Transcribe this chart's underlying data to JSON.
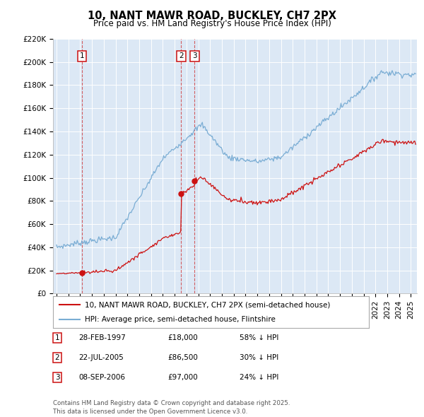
{
  "title": "10, NANT MAWR ROAD, BUCKLEY, CH7 2PX",
  "subtitle": "Price paid vs. HM Land Registry's House Price Index (HPI)",
  "legend_line1": "10, NANT MAWR ROAD, BUCKLEY, CH7 2PX (semi-detached house)",
  "legend_line2": "HPI: Average price, semi-detached house, Flintshire",
  "footer": "Contains HM Land Registry data © Crown copyright and database right 2025.\nThis data is licensed under the Open Government Licence v3.0.",
  "transactions": [
    {
      "label": "1",
      "date_year": 1997.16,
      "price": 18000,
      "pct": "58% ↓ HPI",
      "date_str": "28-FEB-1997",
      "price_str": "£18,000"
    },
    {
      "label": "2",
      "date_year": 2005.55,
      "price": 86500,
      "pct": "30% ↓ HPI",
      "date_str": "22-JUL-2005",
      "price_str": "£86,500"
    },
    {
      "label": "3",
      "date_year": 2006.69,
      "price": 97000,
      "pct": "24% ↓ HPI",
      "date_str": "08-SEP-2006",
      "price_str": "£97,000"
    }
  ],
  "ylim": [
    0,
    220000
  ],
  "yticks": [
    0,
    20000,
    40000,
    60000,
    80000,
    100000,
    120000,
    140000,
    160000,
    180000,
    200000,
    220000
  ],
  "ytick_labels": [
    "£0",
    "£20K",
    "£40K",
    "£60K",
    "£80K",
    "£100K",
    "£120K",
    "£140K",
    "£160K",
    "£180K",
    "£200K",
    "£220K"
  ],
  "hpi_color": "#7aadd4",
  "price_color": "#cc1111",
  "bg_color": "#dce8f5",
  "grid_color": "#ffffff",
  "xmin_year": 1994.7,
  "xmax_year": 2025.5,
  "xtick_years": [
    1995,
    1996,
    1997,
    1998,
    1999,
    2000,
    2001,
    2002,
    2003,
    2004,
    2005,
    2006,
    2007,
    2008,
    2009,
    2010,
    2011,
    2012,
    2013,
    2014,
    2015,
    2016,
    2017,
    2018,
    2019,
    2020,
    2021,
    2022,
    2023,
    2024,
    2025
  ]
}
